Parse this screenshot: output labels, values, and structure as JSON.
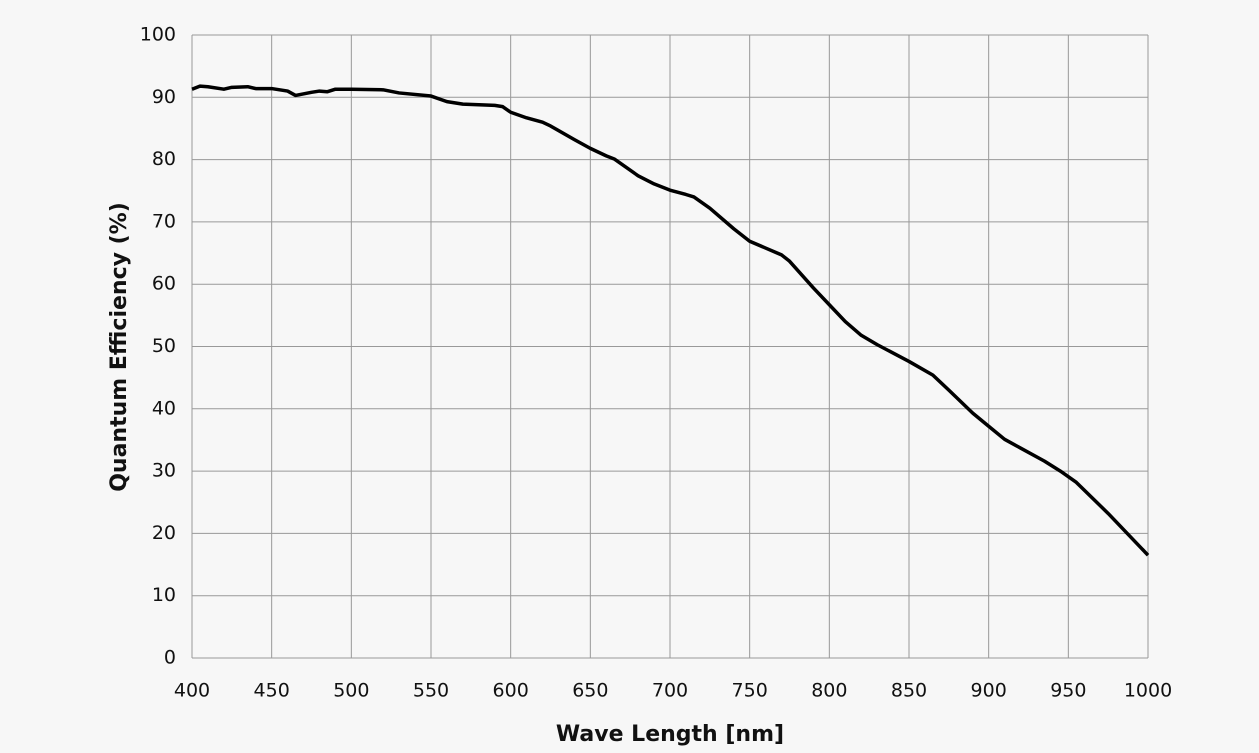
{
  "chart_data": {
    "type": "line",
    "xlabel": "Wave Length [nm]",
    "ylabel": "Quantum Efficiency  (%)",
    "x": [
      400,
      405,
      410,
      420,
      425,
      435,
      440,
      450,
      460,
      465,
      475,
      480,
      485,
      490,
      500,
      520,
      530,
      550,
      560,
      570,
      590,
      595,
      600,
      610,
      620,
      625,
      640,
      650,
      660,
      665,
      680,
      690,
      700,
      710,
      715,
      725,
      740,
      750,
      760,
      770,
      775,
      790,
      800,
      810,
      820,
      830,
      850,
      865,
      875,
      890,
      900,
      910,
      920,
      935,
      945,
      955,
      975,
      1000
    ],
    "series": [
      {
        "name": "Quantum Efficiency",
        "color": "#000000",
        "values": [
          91.3,
          91.8,
          91.7,
          91.3,
          91.6,
          91.7,
          91.4,
          91.4,
          91.0,
          90.3,
          90.8,
          91.0,
          90.9,
          91.3,
          91.3,
          91.2,
          90.7,
          90.2,
          89.3,
          88.9,
          88.7,
          88.5,
          87.6,
          86.7,
          86.0,
          85.4,
          83.2,
          81.8,
          80.6,
          80.1,
          77.4,
          76.1,
          75.1,
          74.4,
          74.0,
          72.2,
          68.9,
          66.9,
          65.8,
          64.7,
          63.7,
          59.4,
          56.7,
          54.0,
          51.8,
          50.3,
          47.6,
          45.4,
          43.0,
          39.3,
          37.2,
          35.1,
          33.7,
          31.6,
          30.0,
          28.2,
          23.2,
          16.5
        ]
      }
    ],
    "xlim": [
      400,
      1000
    ],
    "xticks": [
      400,
      450,
      500,
      550,
      600,
      650,
      700,
      750,
      800,
      850,
      900,
      950,
      1000
    ],
    "ylim": [
      0,
      100
    ],
    "yticks": [
      0,
      10,
      20,
      30,
      40,
      50,
      60,
      70,
      80,
      90,
      100
    ],
    "grid": true
  }
}
